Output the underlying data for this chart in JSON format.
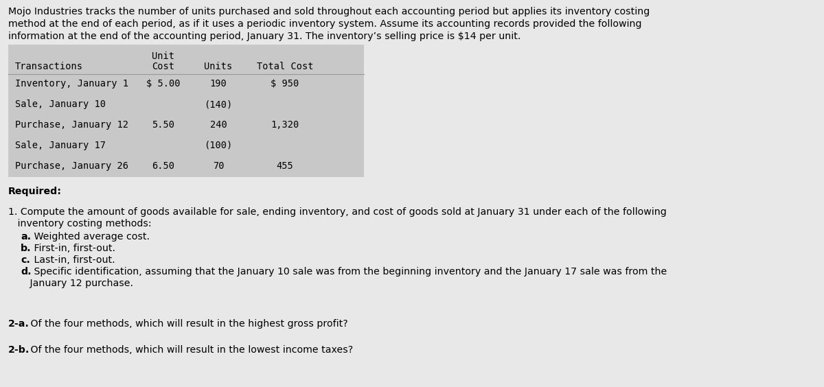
{
  "fig_bg": "#e8e8e8",
  "table_bg": "#c8c8c8",
  "intro_text_line1": "Mojo Industries tracks the number of units purchased and sold throughout each accounting period but applies its inventory costing",
  "intro_text_line2": "method at the end of each period, as if it uses a periodic inventory system. Assume its accounting records provided the following",
  "intro_text_line3": "information at the end of the accounting period, January 31. The inventory’s selling price is $14 per unit.",
  "table_rows": [
    [
      "Inventory, January 1",
      "$ 5.00",
      "190",
      "$ 950"
    ],
    [
      "Sale, January 10",
      "",
      "(140)",
      ""
    ],
    [
      "Purchase, January 12",
      "5.50",
      "240",
      "1,320"
    ],
    [
      "Sale, January 17",
      "",
      "(100)",
      ""
    ],
    [
      "Purchase, January 26",
      "6.50",
      "70",
      "455"
    ]
  ],
  "col_headers": [
    "Transactions",
    "Unit\nCost",
    "Units",
    "Total Cost"
  ],
  "required_label": "Required:",
  "item1_line1": "1. Compute the amount of goods available for sale, ending inventory, and cost of goods sold at January 31 under each of the following",
  "item1_line2": "   inventory costing methods:",
  "item1a_bold": "a.",
  "item1a_rest": " Weighted average cost.",
  "item1b_bold": "b.",
  "item1b_rest": " First-in, first-out.",
  "item1c_bold": "c.",
  "item1c_rest": " Last-in, first-out.",
  "item1d_bold": "d.",
  "item1d_rest": " Specific identification, assuming that the January 10 sale was from the beginning inventory and the January 17 sale was from the",
  "item1d_line2": "   January 12 purchase.",
  "item2a_bold": "2-a.",
  "item2a_rest": " Of the four methods, which will result in the highest gross profit?",
  "item2b_bold": "2-b.",
  "item2b_rest": " Of the four methods, which will result in the lowest income taxes?"
}
